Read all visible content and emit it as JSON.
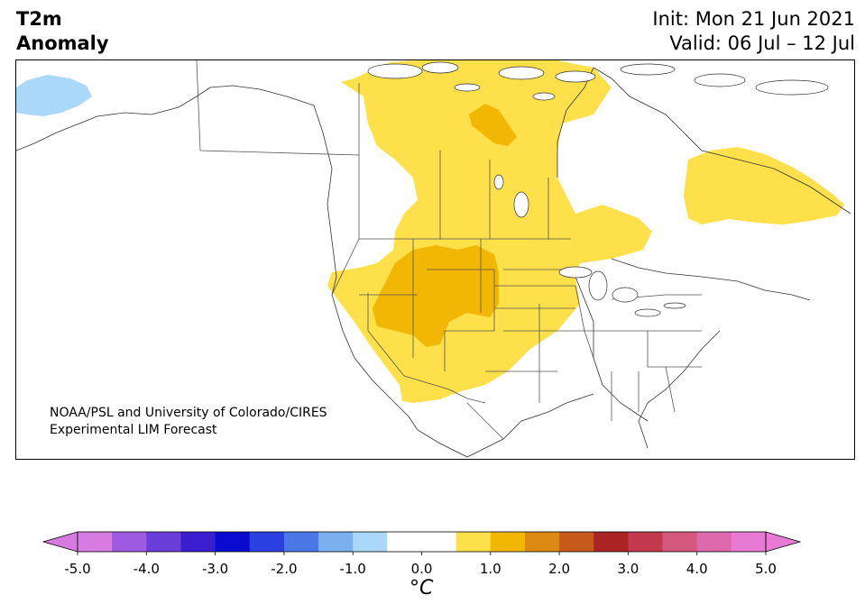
{
  "title": {
    "variable": "T2m",
    "subtitle": "Anomaly",
    "init": "Init: Mon 21 Jun 2021",
    "valid": "Valid: 06 Jul – 12 Jul"
  },
  "credit": {
    "line1": "NOAA/PSL and University of Colorado/CIRES",
    "line2": "Experimental LIM Forecast"
  },
  "colorbar": {
    "unit": "°C",
    "tick_labels": [
      "-5.0",
      "-4.0",
      "-3.0",
      "-2.0",
      "-1.0",
      "0.0",
      "1.0",
      "2.0",
      "3.0",
      "4.0",
      "5.0"
    ],
    "colors": [
      "#d67be0",
      "#9e5ae0",
      "#6a3ed8",
      "#3a1ed0",
      "#0a0ad0",
      "#2a40e0",
      "#4a78e6",
      "#7ab0ee",
      "#aad8f8",
      "#ffffff",
      "#ffffff",
      "#fde04a",
      "#f2b705",
      "#dc8a12",
      "#c65a1c",
      "#aa2424",
      "#c23a4c",
      "#d4587e",
      "#de6aae",
      "#e87ad6"
    ],
    "min_color": "#d67be0",
    "max_color": "#e87ad6"
  },
  "map": {
    "anomaly_colors": {
      "light_yellow": "#fde04a",
      "orange": "#f2b705",
      "light_blue": "#aad8f8"
    }
  }
}
